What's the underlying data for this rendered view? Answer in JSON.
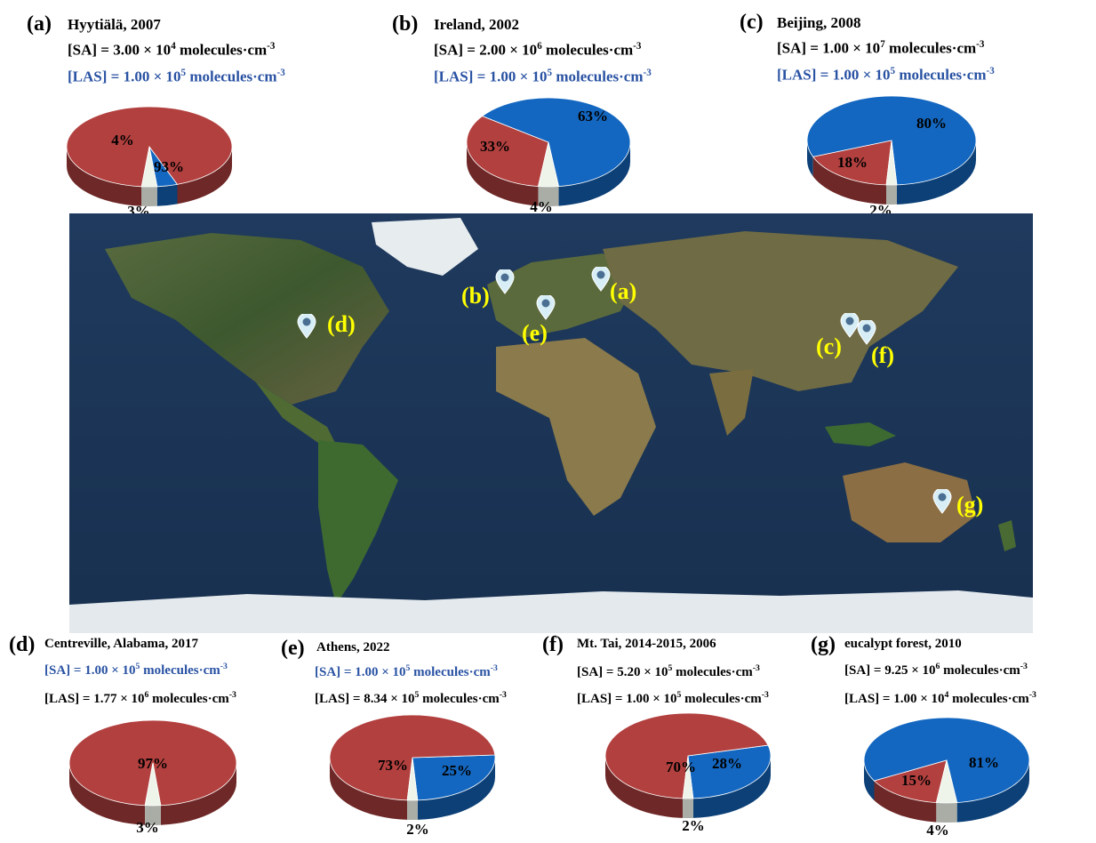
{
  "colors": {
    "blue": "#1467c0",
    "red": "#b2403f",
    "white": "#eef4ea",
    "text_blue": "#2952a3",
    "map_label": "#ffff00"
  },
  "panels": [
    {
      "id": "a",
      "label": "(a)",
      "site": "Hyytiälä, 2007",
      "sa": {
        "prefix": "[SA] = 3.00 × 10",
        "exp": "4",
        "suffix": " molecules·cm",
        "unitexp": "-3"
      },
      "las": {
        "prefix": "[LAS] = 1.00 × 10",
        "exp": "5",
        "suffix": " molecules·cm",
        "unitexp": "-3"
      },
      "sa_blue": false,
      "las_blue": true,
      "pct_blue": "4%",
      "pct_red": "93%",
      "pct_white": "3%"
    },
    {
      "id": "b",
      "label": "(b)",
      "site": "Ireland, 2002",
      "sa": {
        "prefix": "[SA] = 2.00 × 10",
        "exp": "6",
        "suffix": " molecules·cm",
        "unitexp": "-3"
      },
      "las": {
        "prefix": "[LAS] = 1.00 × 10",
        "exp": "5",
        "suffix": " molecules·cm",
        "unitexp": "-3"
      },
      "sa_blue": false,
      "las_blue": true,
      "pct_blue": "63%",
      "pct_red": "33%",
      "pct_white": "4%"
    },
    {
      "id": "c",
      "label": "(c)",
      "site": "Beijing, 2008",
      "sa": {
        "prefix": "[SA] = 1.00 × 10",
        "exp": "7",
        "suffix": " molecules·cm",
        "unitexp": "-3"
      },
      "las": {
        "prefix": "[LAS] = 1.00 × 10",
        "exp": "5",
        "suffix": " molecules·cm",
        "unitexp": "-3"
      },
      "sa_blue": false,
      "las_blue": true,
      "pct_blue": "80%",
      "pct_red": "18%",
      "pct_white": "2%"
    },
    {
      "id": "d",
      "label": "(d)",
      "site": "Centreville, Alabama, 2017",
      "sa": {
        "prefix": "[SA] = 1.00 × 10",
        "exp": "5",
        "suffix": " molecules·cm",
        "unitexp": "-3"
      },
      "las": {
        "prefix": "[LAS] = 1.77 × 10",
        "exp": "6",
        "suffix": " molecules·cm",
        "unitexp": "-3"
      },
      "sa_blue": true,
      "las_blue": false,
      "pct_blue": "",
      "pct_red": "97%",
      "pct_white": "3%"
    },
    {
      "id": "e",
      "label": "(e)",
      "site": "Athens, 2022",
      "sa": {
        "prefix": "[SA] = 1.00 × 10",
        "exp": "5",
        "suffix": " molecules·cm",
        "unitexp": "-3"
      },
      "las": {
        "prefix": "[LAS] = 8.34 × 10",
        "exp": "5",
        "suffix": " molecules·cm",
        "unitexp": "-3"
      },
      "sa_blue": true,
      "las_blue": false,
      "pct_blue": "25%",
      "pct_red": "73%",
      "pct_white": "2%"
    },
    {
      "id": "f",
      "label": "(f)",
      "site": "Mt. Tai, 2014-2015, 2006",
      "sa": {
        "prefix": "[SA] = 5.20 × 10",
        "exp": "5",
        "suffix": " molecules·cm",
        "unitexp": "-3"
      },
      "las": {
        "prefix": "[LAS] = 1.00 × 10",
        "exp": "5",
        "suffix": " molecules·cm",
        "unitexp": "-3"
      },
      "sa_blue": false,
      "las_blue": false,
      "pct_blue": "28%",
      "pct_red": "70%",
      "pct_white": "2%"
    },
    {
      "id": "g",
      "label": "(g)",
      "site": "eucalypt forest,  2010",
      "sa": {
        "prefix": "[SA] = 9.25 × 10",
        "exp": "6",
        "suffix": " molecules·cm",
        "unitexp": "-3"
      },
      "las": {
        "prefix": "[LAS] = 1.00 × 10",
        "exp": "4",
        "suffix": " molecules·cm",
        "unitexp": "-3"
      },
      "sa_blue": false,
      "las_blue": false,
      "pct_blue": "81%",
      "pct_red": "15%",
      "pct_white": "4%"
    }
  ],
  "chart_data": [
    {
      "type": "pie",
      "title": "(a) Hyytiälä, 2007",
      "categories": [
        "blue",
        "red",
        "white"
      ],
      "values": [
        4,
        93,
        3
      ]
    },
    {
      "type": "pie",
      "title": "(b) Ireland, 2002",
      "categories": [
        "blue",
        "red",
        "white"
      ],
      "values": [
        63,
        33,
        4
      ]
    },
    {
      "type": "pie",
      "title": "(c) Beijing, 2008",
      "categories": [
        "blue",
        "red",
        "white"
      ],
      "values": [
        80,
        18,
        2
      ]
    },
    {
      "type": "pie",
      "title": "(d) Centreville, Alabama, 2017",
      "categories": [
        "blue",
        "red",
        "white"
      ],
      "values": [
        0,
        97,
        3
      ]
    },
    {
      "type": "pie",
      "title": "(e) Athens, 2022",
      "categories": [
        "blue",
        "red",
        "white"
      ],
      "values": [
        25,
        73,
        2
      ]
    },
    {
      "type": "pie",
      "title": "(f) Mt. Tai, 2014-2015, 2006",
      "categories": [
        "blue",
        "red",
        "white"
      ],
      "values": [
        28,
        70,
        2
      ]
    },
    {
      "type": "pie",
      "title": "(g) eucalypt forest, 2010",
      "categories": [
        "blue",
        "red",
        "white"
      ],
      "values": [
        81,
        15,
        4
      ]
    }
  ],
  "map": {
    "markers": [
      {
        "label": "(a)"
      },
      {
        "label": "(b)"
      },
      {
        "label": "(c)"
      },
      {
        "label": "(d)"
      },
      {
        "label": "(e)"
      },
      {
        "label": "(f)"
      },
      {
        "label": "(g)"
      }
    ]
  }
}
